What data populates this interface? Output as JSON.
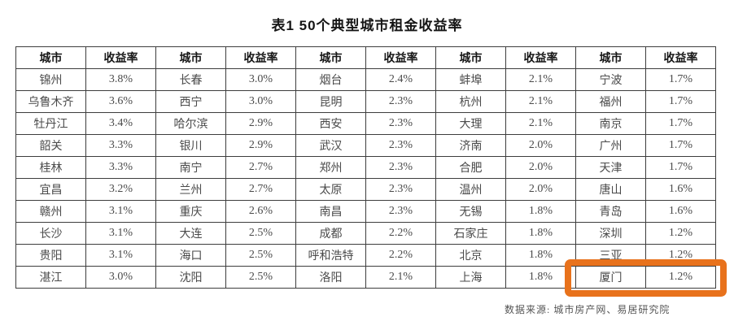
{
  "title": "表1  50个典型城市租金收益率",
  "source_note": "数据来源: 城市房产网、易居研究院",
  "highlight": {
    "color": "#e8721c",
    "highlighted_city": "厦门",
    "highlighted_yield": "1.2%"
  },
  "chart_data": {
    "type": "table",
    "title": "表1 50个典型城市租金收益率",
    "header": {
      "city": "城市",
      "yield": "收益率"
    },
    "groups": [
      {
        "rows": [
          {
            "city": "锦州",
            "yield": "3.8%"
          },
          {
            "city": "乌鲁木齐",
            "yield": "3.6%"
          },
          {
            "city": "牡丹江",
            "yield": "3.4%"
          },
          {
            "city": "韶关",
            "yield": "3.3%"
          },
          {
            "city": "桂林",
            "yield": "3.3%"
          },
          {
            "city": "宜昌",
            "yield": "3.2%"
          },
          {
            "city": "赣州",
            "yield": "3.1%"
          },
          {
            "city": "长沙",
            "yield": "3.1%"
          },
          {
            "city": "贵阳",
            "yield": "3.1%"
          },
          {
            "city": "湛江",
            "yield": "3.0%"
          }
        ]
      },
      {
        "rows": [
          {
            "city": "长春",
            "yield": "3.0%"
          },
          {
            "city": "西宁",
            "yield": "3.0%"
          },
          {
            "city": "哈尔滨",
            "yield": "2.9%"
          },
          {
            "city": "银川",
            "yield": "2.9%"
          },
          {
            "city": "南宁",
            "yield": "2.7%"
          },
          {
            "city": "兰州",
            "yield": "2.7%"
          },
          {
            "city": "重庆",
            "yield": "2.6%"
          },
          {
            "city": "大连",
            "yield": "2.5%"
          },
          {
            "city": "海口",
            "yield": "2.5%"
          },
          {
            "city": "沈阳",
            "yield": "2.5%"
          }
        ]
      },
      {
        "rows": [
          {
            "city": "烟台",
            "yield": "2.4%"
          },
          {
            "city": "昆明",
            "yield": "2.3%"
          },
          {
            "city": "西安",
            "yield": "2.3%"
          },
          {
            "city": "武汉",
            "yield": "2.3%"
          },
          {
            "city": "郑州",
            "yield": "2.3%"
          },
          {
            "city": "太原",
            "yield": "2.3%"
          },
          {
            "city": "南昌",
            "yield": "2.3%"
          },
          {
            "city": "成都",
            "yield": "2.2%"
          },
          {
            "city": "呼和浩特",
            "yield": "2.2%"
          },
          {
            "city": "洛阳",
            "yield": "2.1%"
          }
        ]
      },
      {
        "rows": [
          {
            "city": "蚌埠",
            "yield": "2.1%"
          },
          {
            "city": "杭州",
            "yield": "2.1%"
          },
          {
            "city": "大理",
            "yield": "2.1%"
          },
          {
            "city": "济南",
            "yield": "2.0%"
          },
          {
            "city": "合肥",
            "yield": "2.0%"
          },
          {
            "city": "温州",
            "yield": "2.0%"
          },
          {
            "city": "无锡",
            "yield": "1.8%"
          },
          {
            "city": "石家庄",
            "yield": "1.8%"
          },
          {
            "city": "北京",
            "yield": "1.8%"
          },
          {
            "city": "上海",
            "yield": "1.8%"
          }
        ]
      },
      {
        "rows": [
          {
            "city": "宁波",
            "yield": "1.7%"
          },
          {
            "city": "福州",
            "yield": "1.7%"
          },
          {
            "city": "南京",
            "yield": "1.7%"
          },
          {
            "city": "广州",
            "yield": "1.7%"
          },
          {
            "city": "天津",
            "yield": "1.7%"
          },
          {
            "city": "唐山",
            "yield": "1.6%"
          },
          {
            "city": "青岛",
            "yield": "1.6%"
          },
          {
            "city": "深圳",
            "yield": "1.2%"
          },
          {
            "city": "三亚",
            "yield": "1.2%"
          },
          {
            "city": "厦门",
            "yield": "1.2%"
          }
        ]
      },
      {
        "note": ""
      }
    ],
    "source": "数据来源: 城市房产网、易居研究院",
    "layout": {
      "column_pairs": 5,
      "rows_per_group": 10,
      "grid": "on"
    }
  }
}
